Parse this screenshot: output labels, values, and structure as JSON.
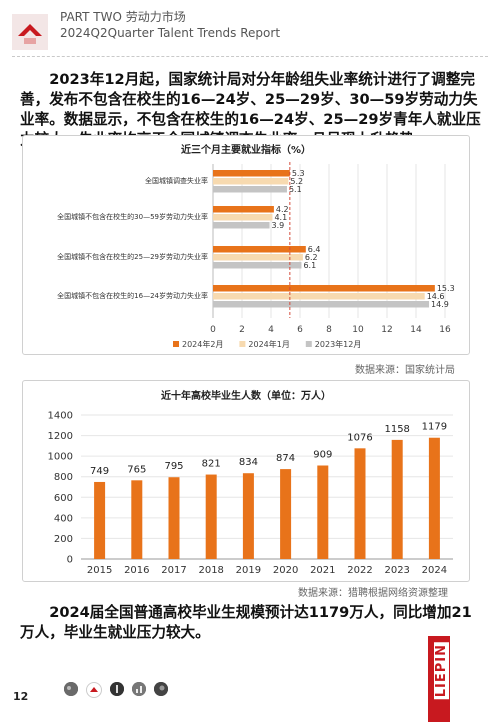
{
  "header": {
    "section": "PART TWO 劳动力市场",
    "subtitle": "2024Q2Quarter Talent Trends Report"
  },
  "paragraphs": {
    "intro": "2023年12月起，国家统计局对分年龄组失业率统计进行了调整完善，发布不包含在校生的16—24岁、25—29岁、30—59岁劳动力失业率。数据显示，不包含在校生的16—24岁、25—29岁青年人就业压力较大，失业率均高于全国城镇调查失业率，且呈现上升趋势。",
    "conclusion": "2024届全国普通高校毕业生规模预计达1179万人，同比增加21万人，毕业生就业压力较大。"
  },
  "sources": {
    "chart1": "数据来源：国家统计局",
    "chart2": "数据来源：猎聘根据网络资源整理"
  },
  "footer": {
    "page_number": "12",
    "brand": "LIEPIN",
    "thumb_icons": [
      "photo-thumb-icon",
      "logo-thumb-icon",
      "person-thumb-icon",
      "chart-thumb-icon",
      "photo-thumb-icon"
    ]
  },
  "colors": {
    "series_feb": "#e8731a",
    "series_jan": "#f7dab0",
    "series_dec": "#c4c4c4",
    "bar": "#e8731a",
    "brand": "#c8191f",
    "ref_line": "#d44a3a"
  },
  "chart_data": [
    {
      "type": "bar",
      "orientation": "horizontal",
      "title": "近三个月主要就业指标（%）",
      "categories": [
        "全国城镇调查失业率",
        "全国城镇不包含在校生的30—59岁劳动力失业率",
        "全国城镇不包含在校生的25—29岁劳动力失业率",
        "全国城镇不包含在校生的16—24岁劳动力失业率"
      ],
      "series": [
        {
          "name": "2024年2月",
          "values": [
            5.3,
            4.2,
            6.4,
            15.3
          ]
        },
        {
          "name": "2024年1月",
          "values": [
            5.2,
            4.1,
            6.2,
            14.6
          ]
        },
        {
          "name": "2023年12月",
          "values": [
            5.1,
            3.9,
            6.1,
            14.9
          ]
        }
      ],
      "value_labels": [
        [
          "5.3",
          "5.2",
          "5.1"
        ],
        [
          "4.2",
          "4.1",
          "3.9"
        ],
        [
          "6.4",
          "6.2",
          "6.1"
        ],
        [
          "15.3",
          "14.6",
          "14.9"
        ]
      ],
      "xlim": [
        0,
        16
      ],
      "xticks": [
        "0",
        "2",
        "4",
        "6",
        "8",
        "10",
        "12",
        "14",
        "16"
      ],
      "reference_line": 5.3,
      "legend_position": "bottom",
      "grid": true
    },
    {
      "type": "bar",
      "title": "近十年高校毕业生人数（单位：万人）",
      "categories": [
        "2015",
        "2016",
        "2017",
        "2018",
        "2019",
        "2020",
        "2021",
        "2022",
        "2023",
        "2024"
      ],
      "values": [
        749,
        765,
        795,
        821,
        834,
        874,
        909,
        1076,
        1158,
        1179
      ],
      "value_labels": [
        "749",
        "765",
        "795",
        "821",
        "834",
        "874",
        "909",
        "1076",
        "1158",
        "1179"
      ],
      "ylim": [
        0,
        1400
      ],
      "yticks": [
        "0",
        "200",
        "400",
        "600",
        "800",
        "1000",
        "1200",
        "1400"
      ],
      "grid": true
    }
  ]
}
